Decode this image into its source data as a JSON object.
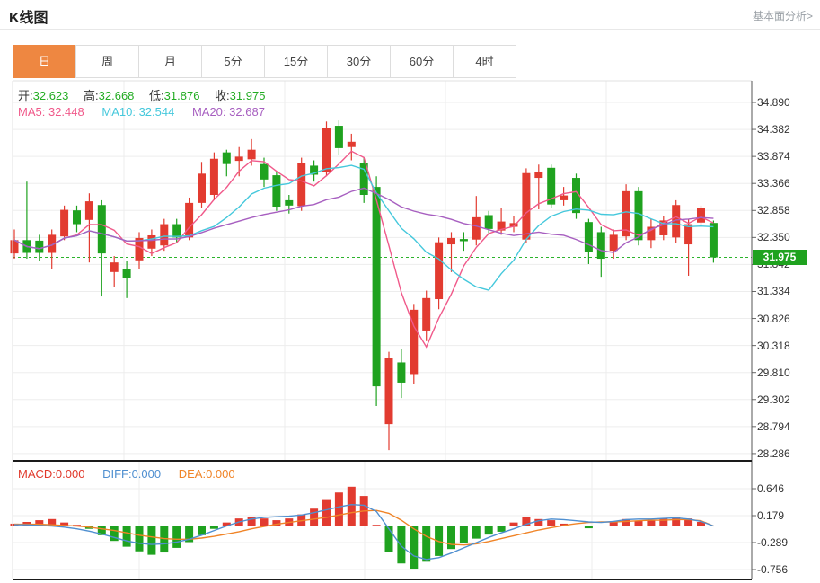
{
  "header": {
    "title": "K线图",
    "link": "基本面分析>"
  },
  "tabs": [
    {
      "label": "日",
      "active": true
    },
    {
      "label": "周",
      "active": false
    },
    {
      "label": "月",
      "active": false
    },
    {
      "label": "5分",
      "active": false
    },
    {
      "label": "15分",
      "active": false
    },
    {
      "label": "30分",
      "active": false
    },
    {
      "label": "60分",
      "active": false
    },
    {
      "label": "4时",
      "active": false
    }
  ],
  "ohlc": {
    "open_label": "开:",
    "open": "32.623",
    "high_label": "高:",
    "high": "32.668",
    "low_label": "低:",
    "low": "31.876",
    "close_label": "收:",
    "close": "31.975"
  },
  "ma": {
    "ma5_label": "MA5:",
    "ma5": "32.448",
    "ma10_label": "MA10:",
    "ma10": "32.544",
    "ma20_label": "MA20:",
    "ma20": "32.687"
  },
  "macd_info": {
    "macd_label": "MACD:",
    "macd": "0.000",
    "diff_label": "DIFF:",
    "diff": "0.000",
    "dea_label": "DEA:",
    "dea": "0.000"
  },
  "current_price": "31.975",
  "colors": {
    "accent_orange": "#ee8741",
    "up_red": "#e23b30",
    "down_green": "#1fa21f",
    "ma5": "#f0598a",
    "ma10": "#45c8dc",
    "ma20": "#a75fc0",
    "diff_blue": "#4f8fd0",
    "dea_orange": "#f08427",
    "price_dotted_green": "#2bb32b",
    "macd_zero_dashed": "#7fc9d6",
    "grid": "#ededed",
    "badge_green": "#1fa21f"
  },
  "chart_data": {
    "type": "candlestick",
    "title": "K线图",
    "price_axis_ticks": [
      "34.890",
      "34.382",
      "33.874",
      "33.366",
      "32.858",
      "32.350",
      "31.842",
      "31.334",
      "30.826",
      "30.318",
      "29.810",
      "29.302",
      "28.794",
      "28.286"
    ],
    "price_axis_range": [
      28.286,
      34.89
    ],
    "macd_axis_ticks": [
      "0.646",
      "0.179",
      "-0.289",
      "-0.756"
    ],
    "macd_axis_range": [
      -0.756,
      0.646
    ],
    "current_price_line": 31.975,
    "ma_periods": [
      5,
      10,
      20
    ],
    "candle_format": "[open, high, low, close]",
    "candles": [
      [
        32.05,
        32.5,
        31.95,
        32.3
      ],
      [
        32.3,
        33.4,
        31.95,
        32.06
      ],
      [
        32.29,
        32.4,
        31.9,
        32.06
      ],
      [
        32.06,
        32.5,
        31.75,
        32.4
      ],
      [
        32.37,
        32.95,
        32.3,
        32.87
      ],
      [
        32.86,
        32.95,
        32.45,
        32.6
      ],
      [
        32.68,
        33.18,
        31.88,
        33.03
      ],
      [
        32.96,
        33.05,
        31.24,
        32.05
      ],
      [
        31.7,
        32.0,
        31.41,
        31.88
      ],
      [
        31.75,
        31.9,
        31.21,
        31.58
      ],
      [
        31.92,
        32.45,
        31.75,
        32.34
      ],
      [
        32.14,
        32.5,
        32.0,
        32.39
      ],
      [
        32.2,
        32.7,
        32.1,
        32.6
      ],
      [
        32.6,
        32.7,
        32.25,
        32.35
      ],
      [
        32.35,
        33.1,
        32.3,
        33.0
      ],
      [
        33.0,
        33.77,
        32.9,
        33.55
      ],
      [
        33.15,
        33.95,
        33.05,
        33.83
      ],
      [
        33.95,
        34.0,
        33.5,
        33.73
      ],
      [
        33.79,
        34.05,
        33.5,
        33.87
      ],
      [
        33.82,
        34.2,
        33.7,
        34.0
      ],
      [
        33.73,
        33.85,
        33.3,
        33.44
      ],
      [
        33.52,
        33.6,
        32.85,
        32.93
      ],
      [
        33.05,
        33.15,
        32.8,
        32.95
      ],
      [
        32.94,
        33.85,
        32.85,
        33.75
      ],
      [
        33.7,
        33.8,
        33.4,
        33.53
      ],
      [
        33.58,
        34.53,
        33.5,
        34.4
      ],
      [
        34.45,
        34.55,
        33.9,
        34.03
      ],
      [
        34.05,
        34.3,
        33.8,
        34.15
      ],
      [
        33.75,
        33.85,
        33.0,
        33.15
      ],
      [
        33.3,
        33.5,
        29.18,
        29.55
      ],
      [
        28.84,
        30.2,
        28.35,
        30.09
      ],
      [
        30.0,
        30.25,
        29.33,
        29.62
      ],
      [
        29.78,
        31.1,
        29.6,
        30.99
      ],
      [
        30.6,
        31.35,
        30.4,
        31.21
      ],
      [
        31.19,
        32.35,
        31.0,
        32.26
      ],
      [
        32.22,
        32.45,
        31.7,
        32.34
      ],
      [
        32.32,
        32.45,
        32.1,
        32.28
      ],
      [
        32.31,
        33.13,
        32.2,
        32.73
      ],
      [
        32.77,
        32.85,
        32.4,
        32.51
      ],
      [
        32.48,
        32.9,
        32.4,
        32.65
      ],
      [
        32.55,
        32.75,
        32.45,
        32.62
      ],
      [
        32.31,
        33.65,
        32.25,
        33.56
      ],
      [
        33.47,
        33.72,
        32.88,
        33.58
      ],
      [
        33.66,
        33.72,
        32.9,
        32.97
      ],
      [
        33.05,
        33.3,
        32.95,
        33.14
      ],
      [
        33.47,
        33.55,
        32.7,
        32.81
      ],
      [
        32.64,
        32.7,
        31.85,
        32.08
      ],
      [
        32.45,
        32.55,
        31.61,
        31.95
      ],
      [
        32.1,
        32.5,
        31.95,
        32.4
      ],
      [
        32.37,
        33.35,
        32.3,
        33.22
      ],
      [
        33.22,
        33.3,
        32.2,
        32.3
      ],
      [
        32.3,
        32.7,
        32.15,
        32.55
      ],
      [
        32.39,
        32.75,
        32.3,
        32.67
      ],
      [
        32.35,
        33.05,
        32.25,
        32.96
      ],
      [
        32.22,
        32.7,
        31.63,
        32.6
      ],
      [
        32.63,
        32.95,
        32.55,
        32.9
      ],
      [
        32.623,
        32.668,
        31.876,
        31.975
      ]
    ],
    "macd": {
      "histogram": [
        0.04,
        0.07,
        0.1,
        0.12,
        0.06,
        0.02,
        -0.05,
        -0.16,
        -0.26,
        -0.36,
        -0.44,
        -0.5,
        -0.46,
        -0.38,
        -0.28,
        -0.16,
        -0.05,
        0.06,
        0.13,
        0.16,
        0.13,
        0.1,
        0.13,
        0.2,
        0.3,
        0.45,
        0.58,
        0.68,
        0.52,
        0.02,
        -0.45,
        -0.65,
        -0.74,
        -0.62,
        -0.52,
        -0.4,
        -0.3,
        -0.22,
        -0.15,
        -0.1,
        0.06,
        0.16,
        0.12,
        0.1,
        0.04,
        0.0,
        -0.04,
        0.0,
        0.08,
        0.12,
        0.09,
        0.1,
        0.13,
        0.16,
        0.13,
        0.07,
        0.0
      ],
      "diff": [
        0.02,
        0.02,
        0.01,
        0.0,
        -0.02,
        -0.05,
        -0.09,
        -0.14,
        -0.2,
        -0.26,
        -0.3,
        -0.32,
        -0.31,
        -0.28,
        -0.23,
        -0.16,
        -0.08,
        0.0,
        0.07,
        0.12,
        0.15,
        0.16,
        0.17,
        0.19,
        0.23,
        0.28,
        0.33,
        0.37,
        0.36,
        0.25,
        -0.05,
        -0.35,
        -0.52,
        -0.58,
        -0.55,
        -0.47,
        -0.38,
        -0.29,
        -0.2,
        -0.12,
        -0.05,
        0.03,
        0.09,
        0.12,
        0.11,
        0.09,
        0.07,
        0.06,
        0.08,
        0.11,
        0.12,
        0.12,
        0.13,
        0.14,
        0.12,
        0.08,
        0.0
      ],
      "dea": [
        0.03,
        0.03,
        0.03,
        0.02,
        0.01,
        0.0,
        -0.02,
        -0.05,
        -0.08,
        -0.12,
        -0.16,
        -0.19,
        -0.22,
        -0.23,
        -0.23,
        -0.21,
        -0.18,
        -0.14,
        -0.1,
        -0.05,
        -0.01,
        0.03,
        0.06,
        0.09,
        0.12,
        0.15,
        0.19,
        0.23,
        0.26,
        0.27,
        0.22,
        0.1,
        -0.05,
        -0.18,
        -0.27,
        -0.32,
        -0.33,
        -0.31,
        -0.27,
        -0.22,
        -0.17,
        -0.12,
        -0.07,
        -0.03,
        0.01,
        0.04,
        0.06,
        0.07,
        0.07,
        0.08,
        0.09,
        0.1,
        0.1,
        0.11,
        0.11,
        0.09,
        0.0
      ]
    }
  }
}
